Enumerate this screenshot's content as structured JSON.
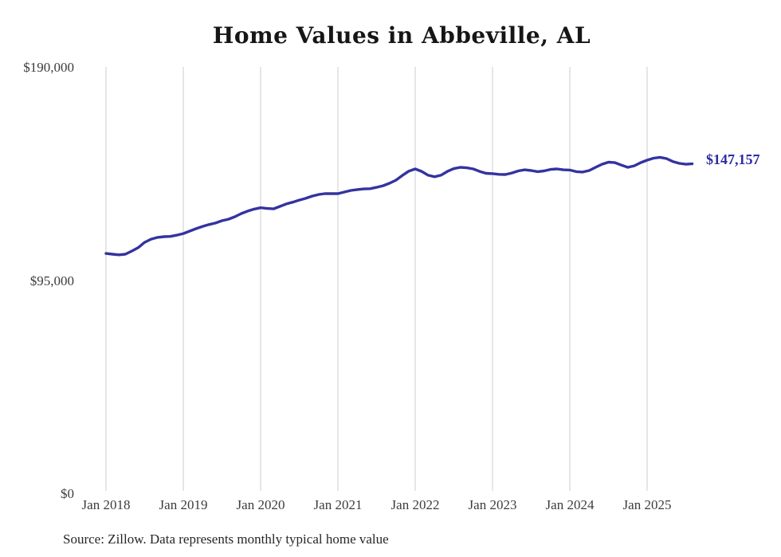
{
  "page": {
    "source_note": "Source: Zillow. Data represents monthly typical home value"
  },
  "colors": {
    "background": "#ffffff",
    "line": "#3333a0",
    "end_label_text": "#2b2ba3",
    "gridline": "#cccccc",
    "title_text": "#161616",
    "tick_text": "#3c3c3c",
    "source_text": "#262626"
  },
  "chart_data": {
    "type": "line",
    "title": "Home Values in Abbeville, AL",
    "xlabel": "",
    "ylabel": "",
    "ylim": [
      0,
      190000
    ],
    "grid": "vertical-only",
    "legend": "none",
    "end_label": "$147,157",
    "x_start": "Jan 2018",
    "x_end": "Aug 2025",
    "x_ticks": [
      "Jan 2018",
      "Jan 2019",
      "Jan 2020",
      "Jan 2021",
      "Jan 2022",
      "Jan 2023",
      "Jan 2024",
      "Jan 2025"
    ],
    "y_ticks": [
      {
        "label": "$190,000",
        "value": 190000
      },
      {
        "label": "$95,000",
        "value": 95000
      },
      {
        "label": "$0",
        "value": 0
      }
    ],
    "series": [
      {
        "name": "Monthly typical home value",
        "points_per_year": 12,
        "values": [
          107200,
          106900,
          106600,
          106900,
          108300,
          109800,
          112200,
          113600,
          114400,
          114700,
          114800,
          115400,
          116100,
          117200,
          118300,
          119300,
          120100,
          120800,
          121800,
          122500,
          123600,
          125000,
          126100,
          127000,
          127600,
          127300,
          127100,
          128200,
          129300,
          130100,
          131000,
          131800,
          132800,
          133500,
          133900,
          133900,
          133900,
          134600,
          135300,
          135700,
          136000,
          136100,
          136700,
          137400,
          138500,
          139900,
          142000,
          143900,
          144900,
          143800,
          142100,
          141400,
          142100,
          143800,
          145050,
          145600,
          145400,
          144900,
          143800,
          142950,
          142800,
          142500,
          142400,
          143100,
          144000,
          144500,
          144200,
          143700,
          144000,
          144700,
          144900,
          144500,
          144400,
          143700,
          143500,
          144200,
          145600,
          147000,
          147900,
          147700,
          146600,
          145600,
          146300,
          147700,
          148800,
          149700,
          150100,
          149500,
          148200,
          147400,
          147000,
          147157
        ]
      }
    ]
  }
}
